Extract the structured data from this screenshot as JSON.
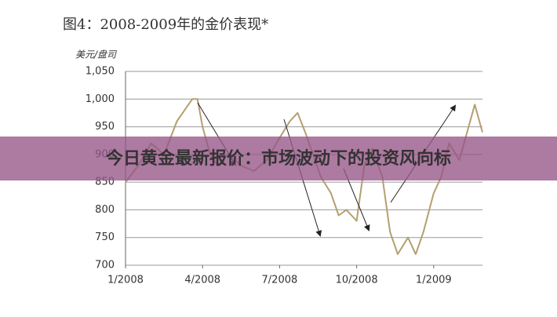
{
  "chart_data": {
    "type": "line",
    "title": "图4：2008-2009年的金价表现*",
    "y_label": "美元/盘司",
    "x": [
      0,
      0.5,
      1,
      1.5,
      2,
      2.3,
      2.6,
      2.8,
      3,
      3.3,
      3.6,
      4,
      4.5,
      5,
      5.5,
      6,
      6.4,
      6.7,
      7,
      7.3,
      7.6,
      8,
      8.3,
      8.6,
      9,
      9.3,
      9.6,
      10,
      10.3,
      10.6,
      11,
      11.3,
      11.6,
      12,
      12.3,
      12.6,
      13,
      13.3,
      13.6,
      13.9
    ],
    "series": [
      {
        "name": "金价",
        "color": "#b3a070",
        "values": [
          850,
          880,
          920,
          900,
          960,
          980,
          1000,
          1000,
          950,
          900,
          880,
          900,
          880,
          870,
          890,
          930,
          960,
          975,
          940,
          900,
          860,
          830,
          790,
          800,
          780,
          880,
          910,
          860,
          760,
          720,
          750,
          720,
          760,
          830,
          860,
          920,
          890,
          940,
          990,
          940
        ]
      }
    ],
    "xlim": [
      0,
      13.9
    ],
    "xticks": [
      {
        "value": 0,
        "label": "1/2008"
      },
      {
        "value": 3,
        "label": "4/2008"
      },
      {
        "value": 6,
        "label": "7/2008"
      },
      {
        "value": 9,
        "label": "10/2008"
      },
      {
        "value": 12,
        "label": "1/2009"
      }
    ],
    "ylim": [
      700,
      1050
    ],
    "yticks": [
      700,
      750,
      800,
      850,
      900,
      950,
      {
        "value": 1000,
        "label": "1,000"
      },
      {
        "value": 1050,
        "label": "1,050"
      }
    ],
    "grid": true
  },
  "banner": {
    "text": "今日黄金最新报价：市场波动下的投资风向标"
  }
}
